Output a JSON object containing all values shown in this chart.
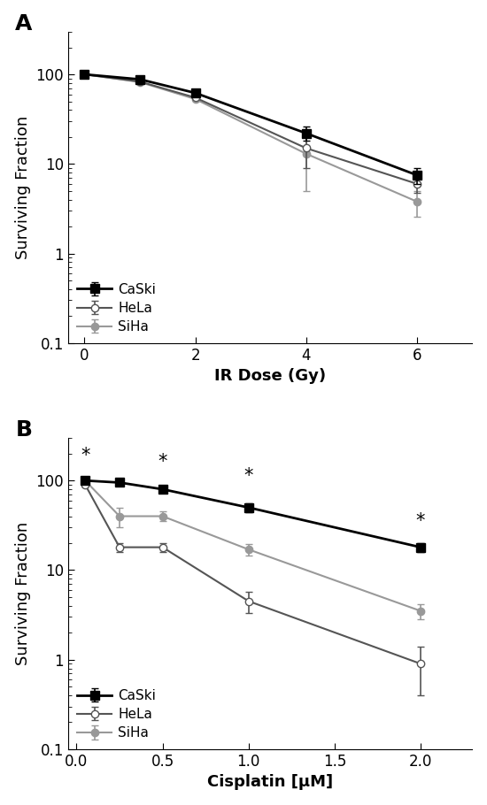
{
  "panel_A": {
    "title": "A",
    "xlabel": "IR Dose (Gy)",
    "ylabel": "Surviving Fraction",
    "xdata": [
      0,
      1,
      2,
      4,
      6
    ],
    "caski_y": [
      100,
      88,
      62,
      22,
      7.5
    ],
    "caski_yerr": [
      2,
      3,
      3,
      4,
      1.5
    ],
    "hela_y": [
      100,
      83,
      55,
      15,
      6.0
    ],
    "hela_yerr": [
      2,
      2,
      2,
      6,
      1.2
    ],
    "siha_y": [
      100,
      82,
      53,
      13,
      3.8
    ],
    "siha_yerr": [
      2,
      2,
      2,
      8,
      1.2
    ],
    "ylim": [
      0.1,
      300
    ],
    "xlim": [
      -0.3,
      7.0
    ],
    "xticks": [
      0,
      2,
      4,
      6
    ]
  },
  "panel_B": {
    "title": "B",
    "xlabel": "Cisplatin [μM]",
    "ylabel": "Surviving Fraction",
    "xdata": [
      0.05,
      0.25,
      0.5,
      1.0,
      2.0
    ],
    "caski_y": [
      100,
      95,
      80,
      50,
      18
    ],
    "caski_yerr": [
      3,
      3,
      5,
      6,
      2
    ],
    "hela_y": [
      90,
      18,
      18,
      4.5,
      0.9
    ],
    "hela_yerr": [
      5,
      2,
      2,
      1.2,
      0.5
    ],
    "siha_y": [
      100,
      40,
      40,
      17,
      3.5
    ],
    "siha_yerr": [
      5,
      10,
      5,
      2.5,
      0.7
    ],
    "ylim": [
      0.1,
      300
    ],
    "xlim": [
      -0.05,
      2.3
    ],
    "xticks": [
      0.0,
      0.5,
      1.0,
      1.5,
      2.0
    ],
    "star_positions": [
      [
        0.05,
        150
      ],
      [
        0.5,
        130
      ],
      [
        1.0,
        90
      ],
      [
        2.0,
        28
      ]
    ]
  },
  "caski_color": "#000000",
  "hela_color": "#555555",
  "siha_color": "#999999",
  "legend_fontsize": 11,
  "axis_fontsize": 12,
  "label_fontsize": 13,
  "panel_label_fontsize": 18
}
